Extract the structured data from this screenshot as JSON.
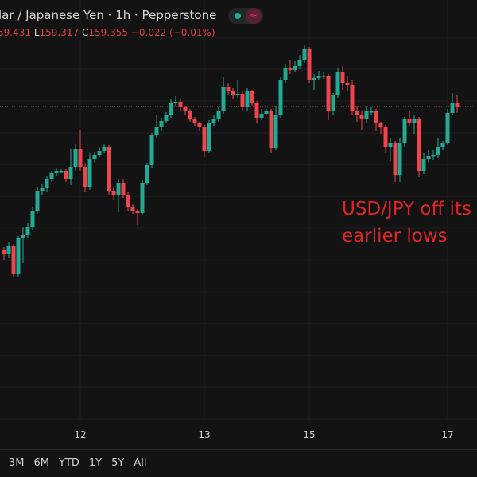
{
  "header": {
    "title": "lar / Japanese Yen · 1h · Pepperstone",
    "ohlc": {
      "high_label": "",
      "high": "59.431",
      "low_label": "L",
      "low": "159.317",
      "close_label": "C",
      "close": "159.355",
      "change": "−0.022 (−0.01%)"
    },
    "status_icon": "market-open-dot",
    "wave_icon": "≈"
  },
  "annotation": {
    "line1": "USD/JPY off its",
    "line2": "earlier lows"
  },
  "time_axis": [
    {
      "label": "12",
      "index": 16
    },
    {
      "label": "13",
      "index": 42
    },
    {
      "label": "15",
      "index": 64
    },
    {
      "label": "17",
      "index": 93
    }
  ],
  "ranges": [
    "3M",
    "6M",
    "YTD",
    "1Y",
    "5Y",
    "All"
  ],
  "colors": {
    "up": "#22ab94",
    "down": "#f0444f",
    "background": "#131313",
    "annotation": "#e0252a",
    "last_price_line": "#c0564a"
  },
  "chart_data": {
    "type": "candlestick",
    "symbol": "USD/JPY",
    "interval": "1h",
    "last_price": 159.355,
    "grid": true,
    "candles": [
      [
        158.45,
        158.47,
        158.39,
        158.425
      ],
      [
        158.425,
        158.5,
        158.4,
        158.475
      ],
      [
        158.475,
        158.49,
        158.28,
        158.3
      ],
      [
        158.3,
        158.54,
        158.28,
        158.525
      ],
      [
        158.525,
        158.6,
        158.37,
        158.55
      ],
      [
        158.55,
        158.62,
        158.53,
        158.6
      ],
      [
        158.6,
        158.72,
        158.58,
        158.7
      ],
      [
        158.7,
        158.85,
        158.68,
        158.825
      ],
      [
        158.825,
        158.87,
        158.8,
        158.84
      ],
      [
        158.84,
        158.92,
        158.82,
        158.9
      ],
      [
        158.9,
        158.95,
        158.88,
        158.935
      ],
      [
        158.935,
        158.97,
        158.92,
        158.95
      ],
      [
        158.95,
        158.965,
        158.935,
        158.95
      ],
      [
        158.95,
        158.96,
        158.88,
        158.9
      ],
      [
        158.9,
        159.09,
        158.86,
        158.975
      ],
      [
        158.975,
        159.12,
        158.95,
        159.085
      ],
      [
        159.085,
        159.21,
        158.95,
        158.975
      ],
      [
        158.975,
        159.0,
        158.82,
        158.85
      ],
      [
        158.85,
        159.06,
        158.83,
        159.025
      ],
      [
        159.025,
        159.07,
        159.0,
        159.05
      ],
      [
        159.05,
        159.1,
        159.04,
        159.075
      ],
      [
        159.075,
        159.12,
        159.06,
        159.1
      ],
      [
        159.1,
        159.11,
        158.8,
        158.825
      ],
      [
        158.825,
        158.85,
        158.77,
        158.8
      ],
      [
        158.8,
        158.9,
        158.69,
        158.875
      ],
      [
        158.875,
        158.9,
        158.78,
        158.8
      ],
      [
        158.8,
        158.82,
        158.7,
        158.725
      ],
      [
        158.725,
        158.74,
        158.68,
        158.7
      ],
      [
        158.7,
        158.71,
        158.61,
        158.685
      ],
      [
        158.685,
        158.89,
        158.67,
        158.875
      ],
      [
        158.875,
        159.0,
        158.86,
        158.985
      ],
      [
        158.985,
        159.19,
        158.97,
        159.175
      ],
      [
        159.175,
        159.3,
        159.16,
        159.225
      ],
      [
        159.225,
        159.28,
        159.2,
        159.265
      ],
      [
        159.265,
        159.32,
        159.25,
        159.3
      ],
      [
        159.3,
        159.4,
        159.28,
        159.375
      ],
      [
        159.375,
        159.42,
        159.36,
        159.385
      ],
      [
        159.385,
        159.4,
        159.33,
        159.35
      ],
      [
        159.35,
        159.36,
        159.3,
        159.325
      ],
      [
        159.325,
        159.34,
        159.26,
        159.275
      ],
      [
        159.275,
        159.29,
        159.23,
        159.25
      ],
      [
        159.25,
        159.26,
        159.2,
        159.225
      ],
      [
        159.225,
        159.24,
        159.04,
        159.075
      ],
      [
        159.075,
        159.27,
        159.06,
        159.25
      ],
      [
        159.25,
        159.3,
        159.23,
        159.275
      ],
      [
        159.275,
        159.35,
        159.26,
        159.325
      ],
      [
        159.325,
        159.54,
        159.31,
        159.475
      ],
      [
        159.475,
        159.5,
        159.43,
        159.45
      ],
      [
        159.45,
        159.47,
        159.4,
        159.425
      ],
      [
        159.425,
        159.52,
        159.41,
        159.435
      ],
      [
        159.435,
        159.45,
        159.33,
        159.35
      ],
      [
        159.35,
        159.47,
        159.33,
        159.45
      ],
      [
        159.45,
        159.46,
        159.36,
        159.375
      ],
      [
        159.375,
        159.39,
        159.25,
        159.285
      ],
      [
        159.285,
        159.34,
        159.27,
        159.31
      ],
      [
        159.31,
        159.34,
        159.3,
        159.325
      ],
      [
        159.325,
        159.34,
        159.06,
        159.095
      ],
      [
        159.095,
        159.36,
        159.08,
        159.3
      ],
      [
        159.3,
        159.54,
        159.28,
        159.525
      ],
      [
        159.525,
        159.62,
        159.5,
        159.6
      ],
      [
        159.6,
        159.65,
        159.56,
        159.585
      ],
      [
        159.585,
        159.64,
        159.57,
        159.61
      ],
      [
        159.61,
        159.68,
        159.59,
        159.65
      ],
      [
        159.65,
        159.74,
        159.63,
        159.715
      ],
      [
        159.715,
        159.73,
        159.5,
        159.525
      ],
      [
        159.525,
        159.56,
        159.46,
        159.535
      ],
      [
        159.535,
        159.58,
        159.52,
        159.55
      ],
      [
        159.55,
        159.57,
        159.53,
        159.55
      ],
      [
        159.55,
        159.56,
        159.27,
        159.325
      ],
      [
        159.325,
        159.44,
        159.3,
        159.425
      ],
      [
        159.425,
        159.6,
        159.41,
        159.575
      ],
      [
        159.575,
        159.61,
        159.46,
        159.5
      ],
      [
        159.5,
        159.55,
        159.45,
        159.49
      ],
      [
        159.49,
        159.52,
        159.3,
        159.325
      ],
      [
        159.325,
        159.36,
        159.26,
        159.3
      ],
      [
        159.3,
        159.33,
        159.21,
        159.275
      ],
      [
        159.275,
        159.36,
        159.25,
        159.325
      ],
      [
        159.325,
        159.35,
        159.3,
        159.325
      ],
      [
        159.325,
        159.34,
        159.2,
        159.25
      ],
      [
        159.25,
        159.26,
        159.18,
        159.225
      ],
      [
        159.225,
        159.24,
        159.06,
        159.1
      ],
      [
        159.1,
        159.16,
        159.01,
        159.125
      ],
      [
        159.125,
        159.14,
        158.88,
        158.925
      ],
      [
        158.925,
        159.16,
        158.88,
        159.125
      ],
      [
        159.125,
        159.29,
        159.1,
        159.275
      ],
      [
        159.275,
        159.33,
        159.23,
        159.25
      ],
      [
        159.25,
        159.3,
        159.18,
        159.275
      ],
      [
        159.275,
        159.29,
        158.91,
        158.95
      ],
      [
        158.95,
        159.06,
        158.93,
        159.025
      ],
      [
        159.025,
        159.08,
        159.0,
        159.045
      ],
      [
        159.045,
        159.08,
        159.02,
        159.05
      ],
      [
        159.05,
        159.16,
        159.03,
        159.1
      ],
      [
        159.1,
        159.14,
        159.08,
        159.125
      ],
      [
        159.125,
        159.34,
        159.11,
        159.315
      ],
      [
        159.315,
        159.44,
        159.3,
        159.377
      ],
      [
        159.377,
        159.431,
        159.317,
        159.355
      ]
    ]
  }
}
